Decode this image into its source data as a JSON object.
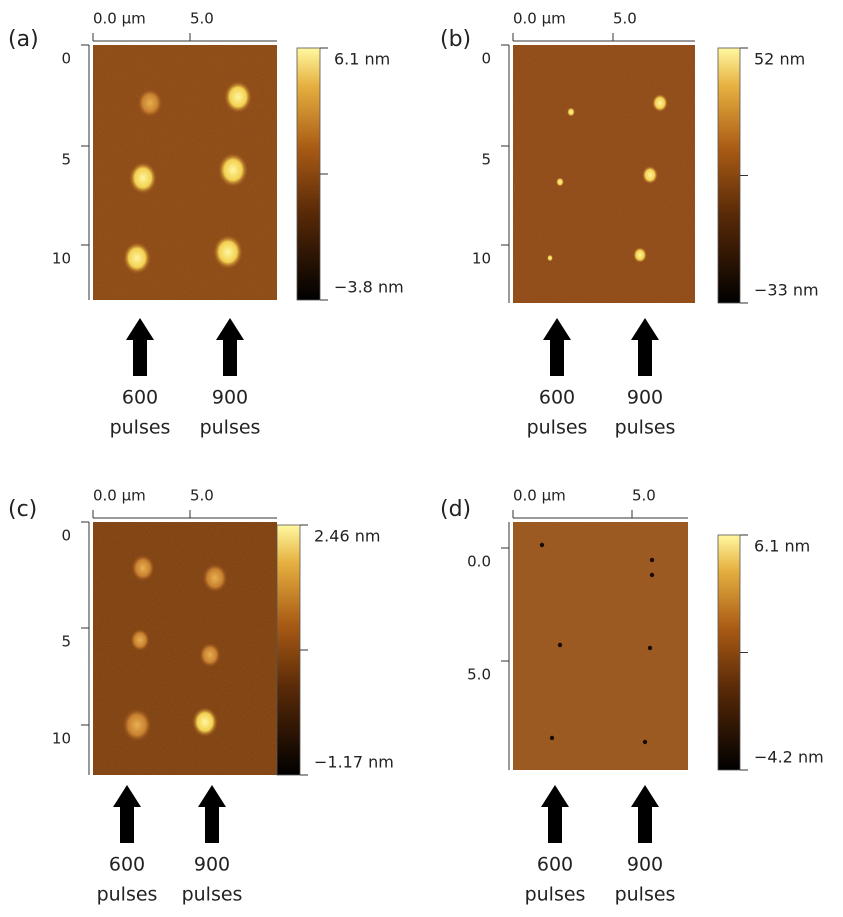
{
  "panels": [
    {
      "label": "(a)",
      "x_ticks": [
        "0.0 µm",
        "5.0"
      ],
      "y_ticks": [
        "0",
        "5",
        "10"
      ],
      "colorbar": {
        "max": "6.1 nm",
        "min": "−3.8 nm"
      },
      "arrows": [
        {
          "count": "600",
          "unit": "pulses"
        },
        {
          "count": "900",
          "unit": "pulses"
        }
      ]
    },
    {
      "label": "(b)",
      "x_ticks": [
        "0.0 µm",
        "5.0"
      ],
      "y_ticks": [
        "0",
        "5",
        "10"
      ],
      "colorbar": {
        "max": "52 nm",
        "min": "−33 nm"
      },
      "arrows": [
        {
          "count": "600",
          "unit": "pulses"
        },
        {
          "count": "900",
          "unit": "pulses"
        }
      ]
    },
    {
      "label": "(c)",
      "x_ticks": [
        "0.0 µm",
        "5.0"
      ],
      "y_ticks": [
        "0",
        "5",
        "10"
      ],
      "colorbar": {
        "max": "2.46 nm",
        "min": "−1.17 nm"
      },
      "arrows": [
        {
          "count": "600",
          "unit": "pulses"
        },
        {
          "count": "900",
          "unit": "pulses"
        }
      ]
    },
    {
      "label": "(d)",
      "x_ticks": [
        "0.0 µm",
        "5.0"
      ],
      "y_ticks": [
        "0.0",
        "5.0"
      ],
      "colorbar": {
        "max": "6.1 nm",
        "min": "−4.2 nm"
      },
      "arrows": [
        {
          "count": "600",
          "unit": "pulses"
        },
        {
          "count": "900",
          "unit": "pulses"
        }
      ]
    }
  ]
}
